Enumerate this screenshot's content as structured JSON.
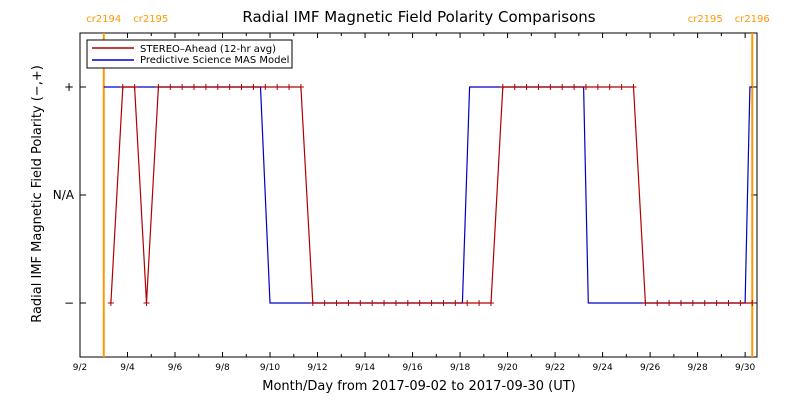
{
  "chart_data": {
    "type": "line",
    "title": "Radial IMF Magnetic Field Polarity Comparisons",
    "xlabel": "Month/Day from 2017-09-02 to 2017-09-30 (UT)",
    "ylabel": "Radial IMF Magnetic Field Polarity (−,+)",
    "x_tick_labels": [
      "9/2",
      "9/4",
      "9/6",
      "9/8",
      "9/10",
      "9/12",
      "9/14",
      "9/16",
      "9/18",
      "9/20",
      "9/22",
      "9/24",
      "9/26",
      "9/28",
      "9/30"
    ],
    "y_tick_labels": [
      "+",
      "N/A",
      "−"
    ],
    "xlim": [
      0,
      28.5
    ],
    "ylim": [
      -1.5,
      1.5
    ],
    "grid": false,
    "legend_position": "top-left",
    "cr_boundaries": [
      {
        "x": 1.0,
        "left": "cr2194",
        "right": "cr2195",
        "color": "#ff9900"
      },
      {
        "x": 28.3,
        "left": "cr2195",
        "right": "cr2196",
        "color": "#ff9900"
      }
    ],
    "series": [
      {
        "name": "STEREO–Ahead (12-hr avg)",
        "color": "#b00000",
        "marker": "plus",
        "x": [
          1.3,
          1.8,
          2.3,
          2.8,
          3.3,
          3.8,
          4.3,
          4.8,
          5.3,
          5.8,
          6.3,
          6.8,
          7.3,
          7.8,
          8.3,
          8.8,
          9.3,
          9.8,
          10.3,
          10.8,
          11.3,
          11.8,
          12.3,
          12.8,
          13.3,
          13.8,
          14.3,
          14.8,
          15.3,
          15.8,
          16.3,
          16.8,
          17.3,
          17.8,
          18.3,
          18.8,
          19.3,
          19.8,
          20.3,
          20.8,
          21.3,
          21.8,
          22.3,
          22.8,
          23.3,
          23.8,
          24.3,
          24.8,
          25.3,
          25.8,
          26.3,
          26.8,
          27.3,
          27.8,
          28.3
        ],
        "y": [
          -1,
          1,
          1,
          -1,
          1,
          1,
          1,
          1,
          1,
          1,
          1,
          1,
          1,
          1,
          1,
          1,
          1,
          -1,
          -1,
          -1,
          -1,
          -1,
          -1,
          -1,
          -1,
          -1,
          -1,
          -1,
          -1,
          -1,
          -1,
          -1,
          -1,
          1,
          1,
          1,
          1,
          1,
          1,
          1,
          1,
          1,
          1,
          1,
          1,
          -1,
          -1,
          -1,
          -1,
          -1,
          -1,
          -1,
          -1,
          -1,
          -1
        ]
      },
      {
        "name": "Predictive Science MAS Model",
        "color": "#0000c0",
        "marker": "none",
        "x": [
          1.0,
          7.6,
          8.0,
          16.1,
          16.4,
          21.2,
          21.4,
          28.0,
          28.2,
          28.3
        ],
        "y": [
          1,
          1,
          -1,
          -1,
          1,
          1,
          -1,
          -1,
          1,
          1
        ]
      }
    ]
  }
}
